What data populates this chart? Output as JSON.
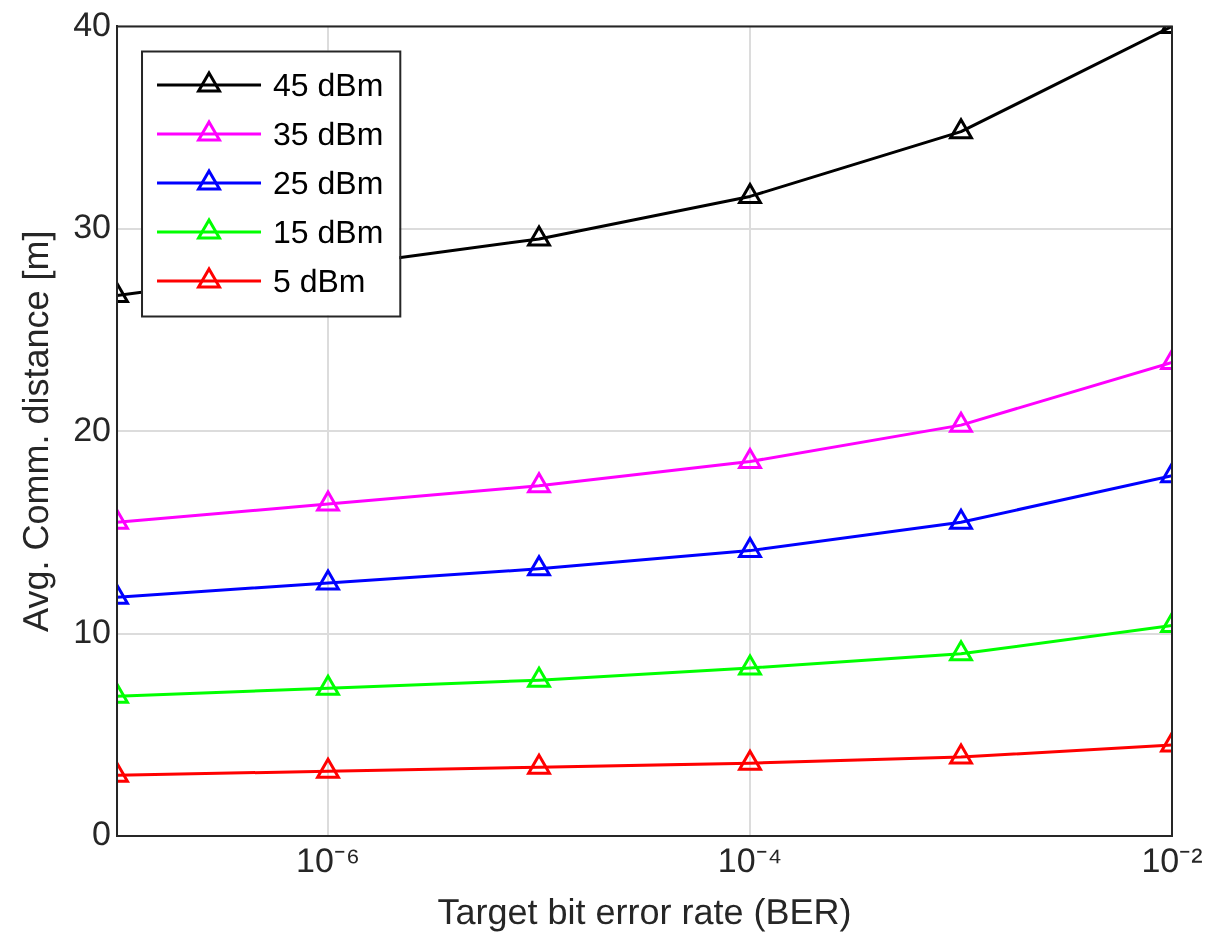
{
  "chart_data": {
    "type": "line",
    "xlabel": "Target bit error rate (BER)",
    "ylabel": "Avg. Comm. distance [m]",
    "x": [
      1e-07,
      1e-06,
      1e-05,
      0.0001,
      0.001,
      0.01
    ],
    "series": [
      {
        "name": "45 dBm",
        "color": "#000000",
        "values": [
          26.7,
          null,
          29.5,
          31.6,
          34.8,
          40.0
        ]
      },
      {
        "name": "35 dBm",
        "color": "#ff00ff",
        "values": [
          15.5,
          16.4,
          17.3,
          18.5,
          20.3,
          23.4
        ]
      },
      {
        "name": "25 dBm",
        "color": "#0000ff",
        "values": [
          11.8,
          12.5,
          13.2,
          14.1,
          15.5,
          17.8
        ]
      },
      {
        "name": "15 dBm",
        "color": "#00ff00",
        "values": [
          6.9,
          7.3,
          7.7,
          8.3,
          9.0,
          10.4
        ]
      },
      {
        "name": "5 dBm",
        "color": "#ff0000",
        "values": [
          3.0,
          3.2,
          3.4,
          3.6,
          3.9,
          4.5
        ]
      }
    ],
    "log": "x",
    "xlim": [
      1e-07,
      0.01
    ],
    "xticks": [
      {
        "value": 1e-06,
        "label": "10⁻⁶"
      },
      {
        "value": 0.0001,
        "label": "10⁻⁴"
      },
      {
        "value": 0.01,
        "label": "10⁻²"
      }
    ],
    "ylim": [
      0,
      40
    ],
    "yticks": [
      0,
      10,
      20,
      30,
      40
    ],
    "grid": true,
    "legend": "top left",
    "marker": "triangle",
    "line_style": "solid"
  }
}
